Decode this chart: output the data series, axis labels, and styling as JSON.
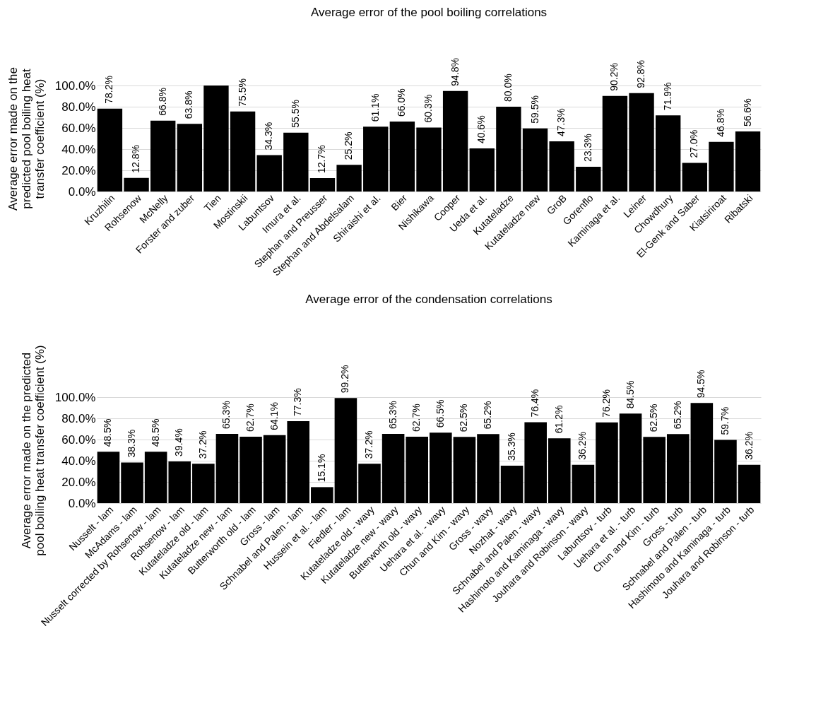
{
  "chart_data": [
    {
      "type": "bar",
      "title": "Average error of the pool boiling correlations",
      "ylabel": "Average error made on the\npredicted pool boiling heat\ntransfer coefficient (%)",
      "categories": [
        "Kruzhilin",
        "Rohsenow",
        "McNelly",
        "Forster and zuber",
        "Tien",
        "Mostinskii",
        "Labuntsov",
        "Imura et al.",
        "Stephan and Preusser",
        "Stephan and Abdelsalam",
        "Shiraishi et al.",
        "Bier",
        "Nishikawa",
        "Cooper",
        "Ueda et al.",
        "Kutateladze",
        "Kutateladze new",
        "GroB",
        "Gorenflo",
        "Kaminaga et al.",
        "Leiner",
        "Chowdhury",
        "El-Genk and Saber",
        "Kiatsiriroat",
        "Ribatski"
      ],
      "values": [
        78.2,
        12.8,
        66.8,
        63.8,
        100,
        75.5,
        34.3,
        55.5,
        12.7,
        25.2,
        61.1,
        66.0,
        60.3,
        94.8,
        40.6,
        80.0,
        59.5,
        47.3,
        23.3,
        90.2,
        92.8,
        71.9,
        27.0,
        46.8,
        56.6
      ],
      "value_labels": [
        "78.2%",
        "12.8%",
        "66.8%",
        "63.8%",
        null,
        "75.5%",
        "34.3%",
        "55.5%",
        "12.7%",
        "25.2%",
        "61.1%",
        "66.0%",
        "60.3%",
        "94.8%",
        "40.6%",
        "80.0%",
        "59.5%",
        "47.3%",
        "23.3%",
        "90.2%",
        "92.8%",
        "71.9%",
        "27.0%",
        "46.8%",
        "56.6%"
      ],
      "color": "#000000",
      "ylim": [
        0,
        100
      ],
      "yticks": [
        {
          "value": 0,
          "label": "0.0%"
        },
        {
          "value": 20,
          "label": "20.0%"
        },
        {
          "value": 40,
          "label": "40.0%"
        },
        {
          "value": 60,
          "label": "60.0%"
        },
        {
          "value": 80,
          "label": "80.0%"
        },
        {
          "value": 100,
          "label": "100.0%"
        }
      ],
      "grid": "y"
    },
    {
      "type": "bar",
      "title": "Average error of the condensation correlations",
      "ylabel": "Average error made on the predicted\npool boiling heat transfer coefficient (%)",
      "categories": [
        "Nusselt - lam",
        "McAdams - lam",
        "Nusselt corrected by Rohsenow - lam",
        "Rohsenow - lam",
        "Kutateladze old - lam",
        "Kutateladze new - lam",
        "Butterworth old - lam",
        "Gross - lam",
        "Schnabel and Palen - lam",
        "Hussein et al. - lam",
        "Fiedler - lam",
        "Kutateladze old - wavy",
        "Kutateladze new - wavy",
        "Butterworth old - wavy",
        "Uehara et al. - wavy",
        "Chun and Kim - wavy",
        "Gross - wavy",
        "Nozhat - wavy",
        "Schnabel and Palen - wavy",
        "Hashimoto and Kaminaga - wavy",
        "Jouhara and Robinson - wavy",
        "Labuntsov - turb",
        "Uehara et al. - turb",
        "Chun and Kim - turb",
        "Gross - turb",
        "Schnabel and Palen - turb",
        "Hashimoto and Kaminaga - turb",
        "Jouhara and Robinson - turb"
      ],
      "values": [
        48.5,
        38.3,
        48.5,
        39.4,
        37.2,
        65.3,
        62.7,
        64.1,
        77.3,
        15.1,
        99.2,
        37.2,
        65.3,
        62.7,
        66.5,
        62.5,
        65.2,
        35.3,
        76.4,
        61.2,
        36.2,
        76.2,
        84.5,
        62.5,
        65.2,
        94.5,
        59.7,
        36.2
      ],
      "value_labels": [
        "48.5%",
        "38.3%",
        "48.5%",
        "39.4%",
        "37.2%",
        "65.3%",
        "62.7%",
        "64.1%",
        "77.3%",
        "15.1%",
        "99.2%",
        "37.2%",
        "65.3%",
        "62.7%",
        "66.5%",
        "62.5%",
        "65.2%",
        "35.3%",
        "76.4%",
        "61.2%",
        "36.2%",
        "76.2%",
        "84.5%",
        "62.5%",
        "65.2%",
        "94.5%",
        "59.7%",
        "36.2%"
      ],
      "color": "#000000",
      "ylim": [
        0,
        100
      ],
      "yticks": [
        {
          "value": 0,
          "label": "0.0%"
        },
        {
          "value": 20,
          "label": "20.0%"
        },
        {
          "value": 40,
          "label": "40.0%"
        },
        {
          "value": 60,
          "label": "60.0%"
        },
        {
          "value": 80,
          "label": "80.0%"
        },
        {
          "value": 100,
          "label": "100.0%"
        }
      ],
      "grid": "y"
    }
  ]
}
